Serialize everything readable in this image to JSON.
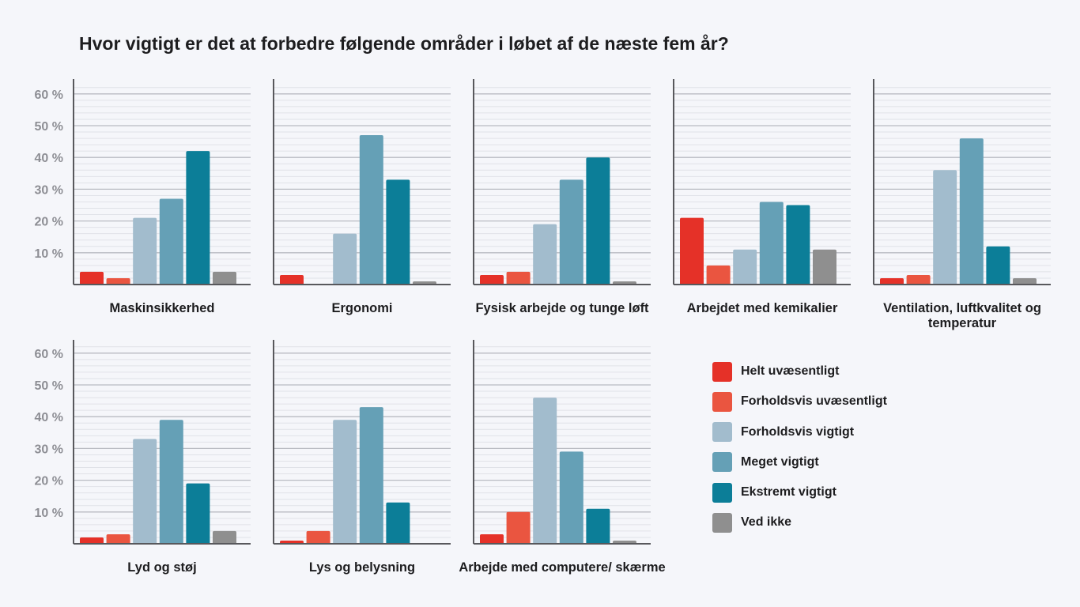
{
  "title": "Hvor vigtigt er det at forbedre følgende områder i løbet af de næste fem år?",
  "colors": {
    "Helt uvæsentligt": "#e53128",
    "Forholdsvis uvæsentligt": "#ea5540",
    "Forholdsvis vigtigt": "#a2bccd",
    "Meget vigtigt": "#65a0b6",
    "Ekstremt vigtigt": "#0c7e98",
    "Ved ikke": "#8f8f8f"
  },
  "legend": [
    "Helt uvæsentligt",
    "Forholdsvis uvæsentligt",
    "Forholdsvis vigtigt",
    "Meget vigtigt",
    "Ekstremt vigtigt",
    "Ved ikke"
  ],
  "chart_data": [
    {
      "type": "bar",
      "title": "Maskinsikkerhed",
      "categories": [
        "Helt uvæsentligt",
        "Forholdsvis uvæsentligt",
        "Forholdsvis vigtigt",
        "Meget vigtigt",
        "Ekstremt vigtigt",
        "Ved ikke"
      ],
      "values": [
        4,
        2,
        21,
        27,
        42,
        4
      ],
      "yticks": [
        "10 %",
        "20 %",
        "30 %",
        "40 %",
        "50 %",
        "60 %"
      ],
      "ylim": [
        0,
        60
      ]
    },
    {
      "type": "bar",
      "title": "Ergonomi",
      "categories": [
        "Helt uvæsentligt",
        "Forholdsvis uvæsentligt",
        "Forholdsvis vigtigt",
        "Meget vigtigt",
        "Ekstremt vigtigt",
        "Ved ikke"
      ],
      "values": [
        3,
        0,
        16,
        47,
        33,
        1
      ],
      "ylim": [
        0,
        60
      ]
    },
    {
      "type": "bar",
      "title": "Fysisk arbejde og tunge løft",
      "categories": [
        "Helt uvæsentligt",
        "Forholdsvis uvæsentligt",
        "Forholdsvis vigtigt",
        "Meget vigtigt",
        "Ekstremt vigtigt",
        "Ved ikke"
      ],
      "values": [
        3,
        4,
        19,
        33,
        40,
        1
      ],
      "ylim": [
        0,
        60
      ]
    },
    {
      "type": "bar",
      "title": "Arbejdet med kemikalier",
      "categories": [
        "Helt uvæsentligt",
        "Forholdsvis uvæsentligt",
        "Forholdsvis vigtigt",
        "Meget vigtigt",
        "Ekstremt vigtigt",
        "Ved ikke"
      ],
      "values": [
        21,
        6,
        11,
        26,
        25,
        11
      ],
      "ylim": [
        0,
        60
      ]
    },
    {
      "type": "bar",
      "title": "Ventilation, luftkvalitet og temperatur",
      "categories": [
        "Helt uvæsentligt",
        "Forholdsvis uvæsentligt",
        "Forholdsvis vigtigt",
        "Meget vigtigt",
        "Ekstremt vigtigt",
        "Ved ikke"
      ],
      "values": [
        2,
        3,
        36,
        46,
        12,
        2
      ],
      "ylim": [
        0,
        60
      ]
    },
    {
      "type": "bar",
      "title": "Lyd og støj",
      "categories": [
        "Helt uvæsentligt",
        "Forholdsvis uvæsentligt",
        "Forholdsvis vigtigt",
        "Meget vigtigt",
        "Ekstremt vigtigt",
        "Ved ikke"
      ],
      "values": [
        2,
        3,
        33,
        39,
        19,
        4
      ],
      "yticks": [
        "10 %",
        "20 %",
        "30 %",
        "40 %",
        "50 %",
        "60 %"
      ],
      "ylim": [
        0,
        60
      ]
    },
    {
      "type": "bar",
      "title": "Lys og belysning",
      "categories": [
        "Helt uvæsentligt",
        "Forholdsvis uvæsentligt",
        "Forholdsvis vigtigt",
        "Meget vigtigt",
        "Ekstremt vigtigt",
        "Ved ikke"
      ],
      "values": [
        1,
        4,
        39,
        43,
        13,
        0
      ],
      "ylim": [
        0,
        60
      ]
    },
    {
      "type": "bar",
      "title": "Arbejde med computere/ skærme",
      "categories": [
        "Helt uvæsentligt",
        "Forholdsvis uvæsentligt",
        "Forholdsvis vigtigt",
        "Meget vigtigt",
        "Ekstremt vigtigt",
        "Ved ikke"
      ],
      "values": [
        3,
        10,
        46,
        29,
        11,
        1
      ],
      "ylim": [
        0,
        60
      ]
    }
  ]
}
